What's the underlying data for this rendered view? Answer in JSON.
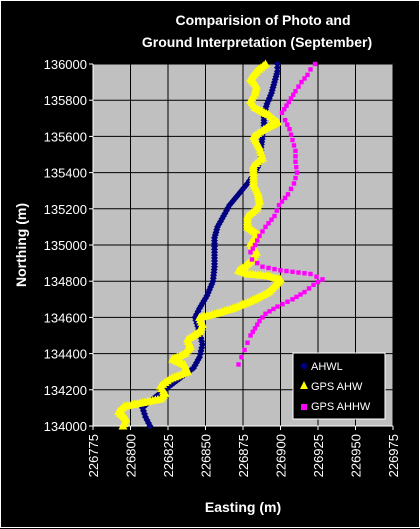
{
  "chart_data": {
    "type": "scatter",
    "title_lines": [
      "Comparision of Photo and",
      "Ground Interpretation (September)"
    ],
    "xlabel": "Easting (m)",
    "ylabel": "Northing (m)",
    "xlim": [
      226775,
      226975
    ],
    "ylim": [
      134000,
      136000
    ],
    "x_ticks": [
      "226775",
      "226800",
      "226825",
      "226850",
      "226875",
      "226900",
      "226925",
      "226950",
      "226975"
    ],
    "y_ticks": [
      "134000",
      "134200",
      "134400",
      "134600",
      "134800",
      "135000",
      "135200",
      "135400",
      "135600",
      "135800",
      "136000"
    ],
    "grid": true,
    "plot_background": "#c0c0c0",
    "legend_position": "bottom-right",
    "series": [
      {
        "name": "AHWL",
        "color": "#000080",
        "marker": "diamond",
        "points": [
          [
            226813,
            134000
          ],
          [
            226810,
            134050
          ],
          [
            226808,
            134100
          ],
          [
            226812,
            134130
          ],
          [
            226818,
            134170
          ],
          [
            226826,
            134220
          ],
          [
            226834,
            134270
          ],
          [
            226842,
            134320
          ],
          [
            226846,
            134380
          ],
          [
            226848,
            134450
          ],
          [
            226846,
            134520
          ],
          [
            226843,
            134600
          ],
          [
            226846,
            134650
          ],
          [
            226851,
            134720
          ],
          [
            226855,
            134800
          ],
          [
            226856,
            134880
          ],
          [
            226856,
            134960
          ],
          [
            226856,
            135040
          ],
          [
            226858,
            135100
          ],
          [
            226862,
            135160
          ],
          [
            226866,
            135220
          ],
          [
            226872,
            135280
          ],
          [
            226878,
            135340
          ],
          [
            226883,
            135400
          ],
          [
            226887,
            135470
          ],
          [
            226887,
            135540
          ],
          [
            226888,
            135600
          ],
          [
            226889,
            135660
          ],
          [
            226889,
            135720
          ],
          [
            226891,
            135780
          ],
          [
            226894,
            135840
          ],
          [
            226896,
            135900
          ],
          [
            226898,
            135960
          ],
          [
            226898,
            136000
          ]
        ]
      },
      {
        "name": "GPS AHW",
        "color": "#ffff00",
        "marker": "triangle",
        "points": [
          [
            226795,
            134000
          ],
          [
            226797,
            134040
          ],
          [
            226792,
            134080
          ],
          [
            226796,
            134110
          ],
          [
            226808,
            134130
          ],
          [
            226820,
            134150
          ],
          [
            226823,
            134180
          ],
          [
            226820,
            134220
          ],
          [
            226826,
            134260
          ],
          [
            226838,
            134300
          ],
          [
            226836,
            134340
          ],
          [
            226828,
            134370
          ],
          [
            226836,
            134400
          ],
          [
            226840,
            134440
          ],
          [
            226838,
            134480
          ],
          [
            226846,
            134520
          ],
          [
            226848,
            134560
          ],
          [
            226846,
            134600
          ],
          [
            226856,
            134620
          ],
          [
            226868,
            134650
          ],
          [
            226880,
            134690
          ],
          [
            226892,
            134740
          ],
          [
            226900,
            134810
          ],
          [
            226892,
            134830
          ],
          [
            226878,
            134840
          ],
          [
            226872,
            134860
          ],
          [
            226876,
            134880
          ],
          [
            226881,
            134920
          ],
          [
            226884,
            134960
          ],
          [
            226880,
            135010
          ],
          [
            226885,
            135060
          ],
          [
            226878,
            135100
          ],
          [
            226878,
            135160
          ],
          [
            226884,
            135200
          ],
          [
            226886,
            135240
          ],
          [
            226885,
            135290
          ],
          [
            226882,
            135340
          ],
          [
            226882,
            135400
          ],
          [
            226882,
            135440
          ],
          [
            226888,
            135480
          ],
          [
            226886,
            135540
          ],
          [
            226882,
            135600
          ],
          [
            226889,
            135640
          ],
          [
            226898,
            135680
          ],
          [
            226892,
            135720
          ],
          [
            226883,
            135760
          ],
          [
            226880,
            135800
          ],
          [
            226883,
            135840
          ],
          [
            226884,
            135880
          ],
          [
            226880,
            135920
          ],
          [
            226884,
            135960
          ],
          [
            226890,
            136000
          ]
        ]
      },
      {
        "name": "GPS AHHW",
        "color": "#ff00ff",
        "marker": "square",
        "points": [
          [
            226872,
            134340
          ],
          [
            226874,
            134380
          ],
          [
            226876,
            134420
          ],
          [
            226878,
            134460
          ],
          [
            226880,
            134500
          ],
          [
            226883,
            134540
          ],
          [
            226886,
            134580
          ],
          [
            226890,
            134620
          ],
          [
            226898,
            134660
          ],
          [
            226908,
            134700
          ],
          [
            226916,
            134740
          ],
          [
            226922,
            134780
          ],
          [
            226928,
            134810
          ],
          [
            226920,
            134840
          ],
          [
            226900,
            134860
          ],
          [
            226888,
            134880
          ],
          [
            226881,
            134920
          ],
          [
            226880,
            134960
          ],
          [
            226883,
            135000
          ],
          [
            226886,
            135050
          ],
          [
            226890,
            135100
          ],
          [
            226896,
            135160
          ],
          [
            226899,
            135220
          ],
          [
            226905,
            135280
          ],
          [
            226909,
            135340
          ],
          [
            226911,
            135400
          ],
          [
            226910,
            135460
          ],
          [
            226910,
            135520
          ],
          [
            226908,
            135580
          ],
          [
            226906,
            135640
          ],
          [
            226903,
            135690
          ],
          [
            226901,
            135730
          ],
          [
            226904,
            135770
          ],
          [
            226907,
            135810
          ],
          [
            226910,
            135850
          ],
          [
            226914,
            135900
          ],
          [
            226918,
            135940
          ],
          [
            226920,
            135970
          ],
          [
            226923,
            136000
          ]
        ]
      }
    ]
  }
}
